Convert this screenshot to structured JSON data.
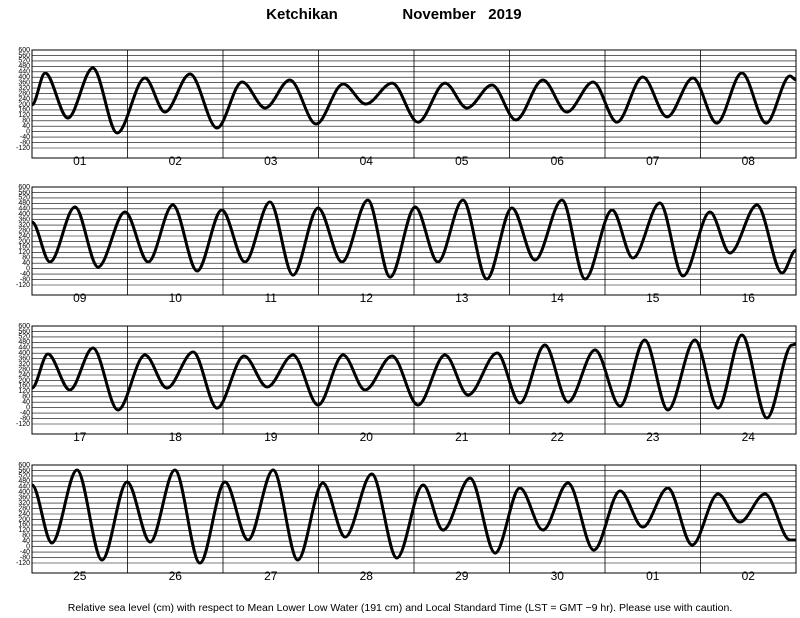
{
  "header": {
    "title": "Ketchikan",
    "period": "November   2019"
  },
  "footer": "Relative sea level (cm) with respect to Mean Lower Low Water (191 cm) and Local Standard Time (LST = GMT −9 hr). Please use with caution.",
  "chart_data": [
    {
      "type": "line",
      "color": "#000000",
      "grid": true,
      "xlim": [
        0,
        192
      ],
      "ylim": [
        -120,
        600
      ],
      "yticks": [
        -120,
        -80,
        -40,
        0,
        40,
        80,
        120,
        160,
        200,
        240,
        280,
        320,
        360,
        400,
        440,
        480,
        520,
        560,
        600
      ],
      "day_labels": [
        "01",
        "02",
        "03",
        "04",
        "05",
        "06",
        "07",
        "08"
      ],
      "x": [
        0,
        3.3,
        9.0,
        15.3,
        21.4,
        28.4,
        33.4,
        39.7,
        46.5,
        52.8,
        58.6,
        64.8,
        71.4,
        78.2,
        83.9,
        90.5,
        97.0,
        103.8,
        109.3,
        115.6,
        121.6,
        128.4,
        134.4,
        141.0,
        147.0,
        153.5,
        159.6,
        166.1,
        172.1,
        178.4,
        184.5,
        190.5,
        192
      ],
      "values": [
        196,
        431,
        100,
        468,
        -10,
        394,
        144,
        424,
        27,
        365,
        174,
        380,
        56,
        350,
        203,
        357,
        70,
        357,
        174,
        343,
        86,
        380,
        144,
        365,
        70,
        402,
        108,
        394,
        63,
        431,
        63,
        409,
        380
      ]
    },
    {
      "type": "line",
      "color": "#000000",
      "grid": true,
      "xlim": [
        0,
        192
      ],
      "ylim": [
        -120,
        600
      ],
      "yticks": [
        -120,
        -80,
        -40,
        0,
        40,
        80,
        120,
        160,
        200,
        240,
        280,
        320,
        360,
        400,
        440,
        480,
        520,
        560,
        600
      ],
      "day_labels": [
        "09",
        "10",
        "11",
        "12",
        "13",
        "14",
        "15",
        "16"
      ],
      "x": [
        0,
        4.5,
        10.8,
        16.6,
        23.4,
        29.2,
        35.4,
        41.5,
        47.7,
        53.5,
        59.8,
        65.6,
        71.9,
        77.9,
        84.4,
        90.0,
        96.3,
        102.0,
        108.3,
        114.3,
        120.6,
        126.4,
        133.2,
        139.0,
        145.8,
        151.0,
        157.8,
        163.6,
        170.4,
        175.4,
        182.2,
        188.5,
        192
      ],
      "values": [
        343,
        49,
        453,
        12,
        416,
        49,
        468,
        -17,
        431,
        49,
        490,
        -47,
        446,
        49,
        504,
        -62,
        453,
        49,
        504,
        -76,
        446,
        63,
        504,
        -76,
        431,
        78,
        482,
        -54,
        416,
        115,
        468,
        -32,
        137
      ]
    },
    {
      "type": "line",
      "color": "#000000",
      "grid": true,
      "xlim": [
        0,
        192
      ],
      "ylim": [
        -120,
        600
      ],
      "yticks": [
        -120,
        -80,
        -40,
        0,
        40,
        80,
        120,
        160,
        200,
        240,
        280,
        320,
        360,
        400,
        440,
        480,
        520,
        560,
        600
      ],
      "day_labels": [
        "17",
        "18",
        "19",
        "20",
        "21",
        "22",
        "23",
        "24"
      ],
      "x": [
        0,
        4.0,
        9.5,
        15.3,
        21.6,
        28.4,
        33.9,
        40.5,
        46.5,
        53.3,
        59.1,
        65.6,
        71.9,
        78.2,
        83.7,
        90.5,
        97.0,
        103.8,
        109.6,
        116.9,
        122.6,
        128.9,
        134.7,
        141.5,
        147.8,
        154.0,
        159.8,
        166.6,
        172.4,
        178.4,
        184.7,
        191.0,
        192
      ],
      "values": [
        144,
        394,
        130,
        438,
        -17,
        387,
        144,
        409,
        -3,
        380,
        152,
        387,
        19,
        387,
        130,
        380,
        19,
        387,
        93,
        402,
        34,
        460,
        41,
        424,
        12,
        497,
        -17,
        497,
        -3,
        534,
        -76,
        460,
        468
      ]
    },
    {
      "type": "line",
      "color": "#000000",
      "grid": true,
      "xlim": [
        0,
        192
      ],
      "ylim": [
        -120,
        600
      ],
      "yticks": [
        -120,
        -80,
        -40,
        0,
        40,
        80,
        120,
        160,
        200,
        240,
        280,
        320,
        360,
        400,
        440,
        480,
        520,
        560,
        600
      ],
      "day_labels": [
        "25",
        "26",
        "27",
        "28",
        "29",
        "30",
        "01",
        "02"
      ],
      "x": [
        0,
        5.0,
        11.3,
        17.6,
        23.9,
        29.7,
        35.9,
        42.2,
        48.5,
        54.3,
        60.6,
        66.8,
        73.1,
        78.7,
        85.4,
        91.7,
        98.3,
        103.3,
        110.1,
        116.4,
        122.6,
        128.4,
        134.7,
        141.2,
        147.8,
        153.5,
        159.8,
        165.9,
        172.4,
        177.9,
        184.2,
        190.5,
        192
      ],
      "values": [
        453,
        27,
        563,
        -98,
        475,
        34,
        563,
        -120,
        475,
        49,
        563,
        -98,
        468,
        71,
        534,
        -83,
        453,
        122,
        504,
        -47,
        431,
        122,
        468,
        -25,
        409,
        144,
        431,
        12,
        387,
        181,
        387,
        49,
        49
      ]
    }
  ]
}
